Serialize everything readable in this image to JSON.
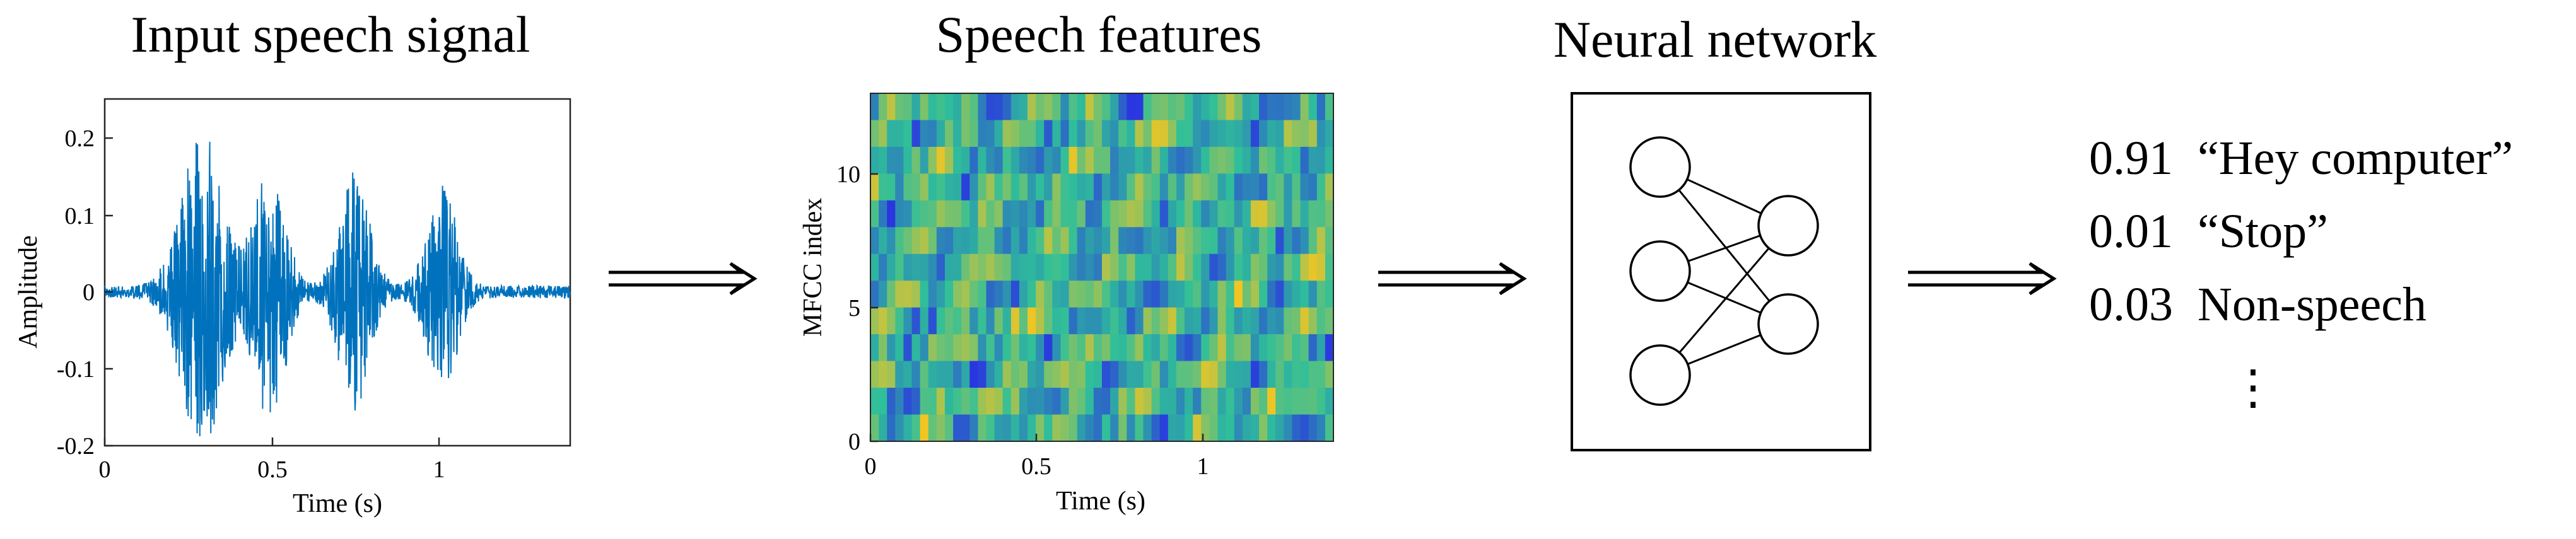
{
  "stages": {
    "waveform": {
      "title": "Input speech signal",
      "xlabel": "Time (s)",
      "ylabel": "Amplitude",
      "xticks": [
        "0",
        "0.5",
        "1"
      ],
      "yticks": [
        "0.2",
        "0.1",
        "0",
        "-0.1",
        "-0.2"
      ]
    },
    "features": {
      "title": "Speech features",
      "xlabel": "Time (s)",
      "ylabel": "MFCC index",
      "xticks": [
        "0",
        "0.5",
        "1"
      ],
      "yticks": [
        "10",
        "5",
        "0"
      ]
    },
    "network": {
      "title": "Neural network"
    },
    "outputs": [
      {
        "score": "0.91",
        "label": "“Hey computer”"
      },
      {
        "score": "0.01",
        "label": "“Stop”"
      },
      {
        "score": "0.03",
        "label": "Non-speech"
      }
    ],
    "ellipsis": "⋮"
  },
  "colors": {
    "waveform": "#0072BD",
    "axes": "#262626",
    "heatmap_low": "#2a36e0",
    "heatmap_mid": "#2fbf9a",
    "heatmap_high": "#f2c523"
  }
}
